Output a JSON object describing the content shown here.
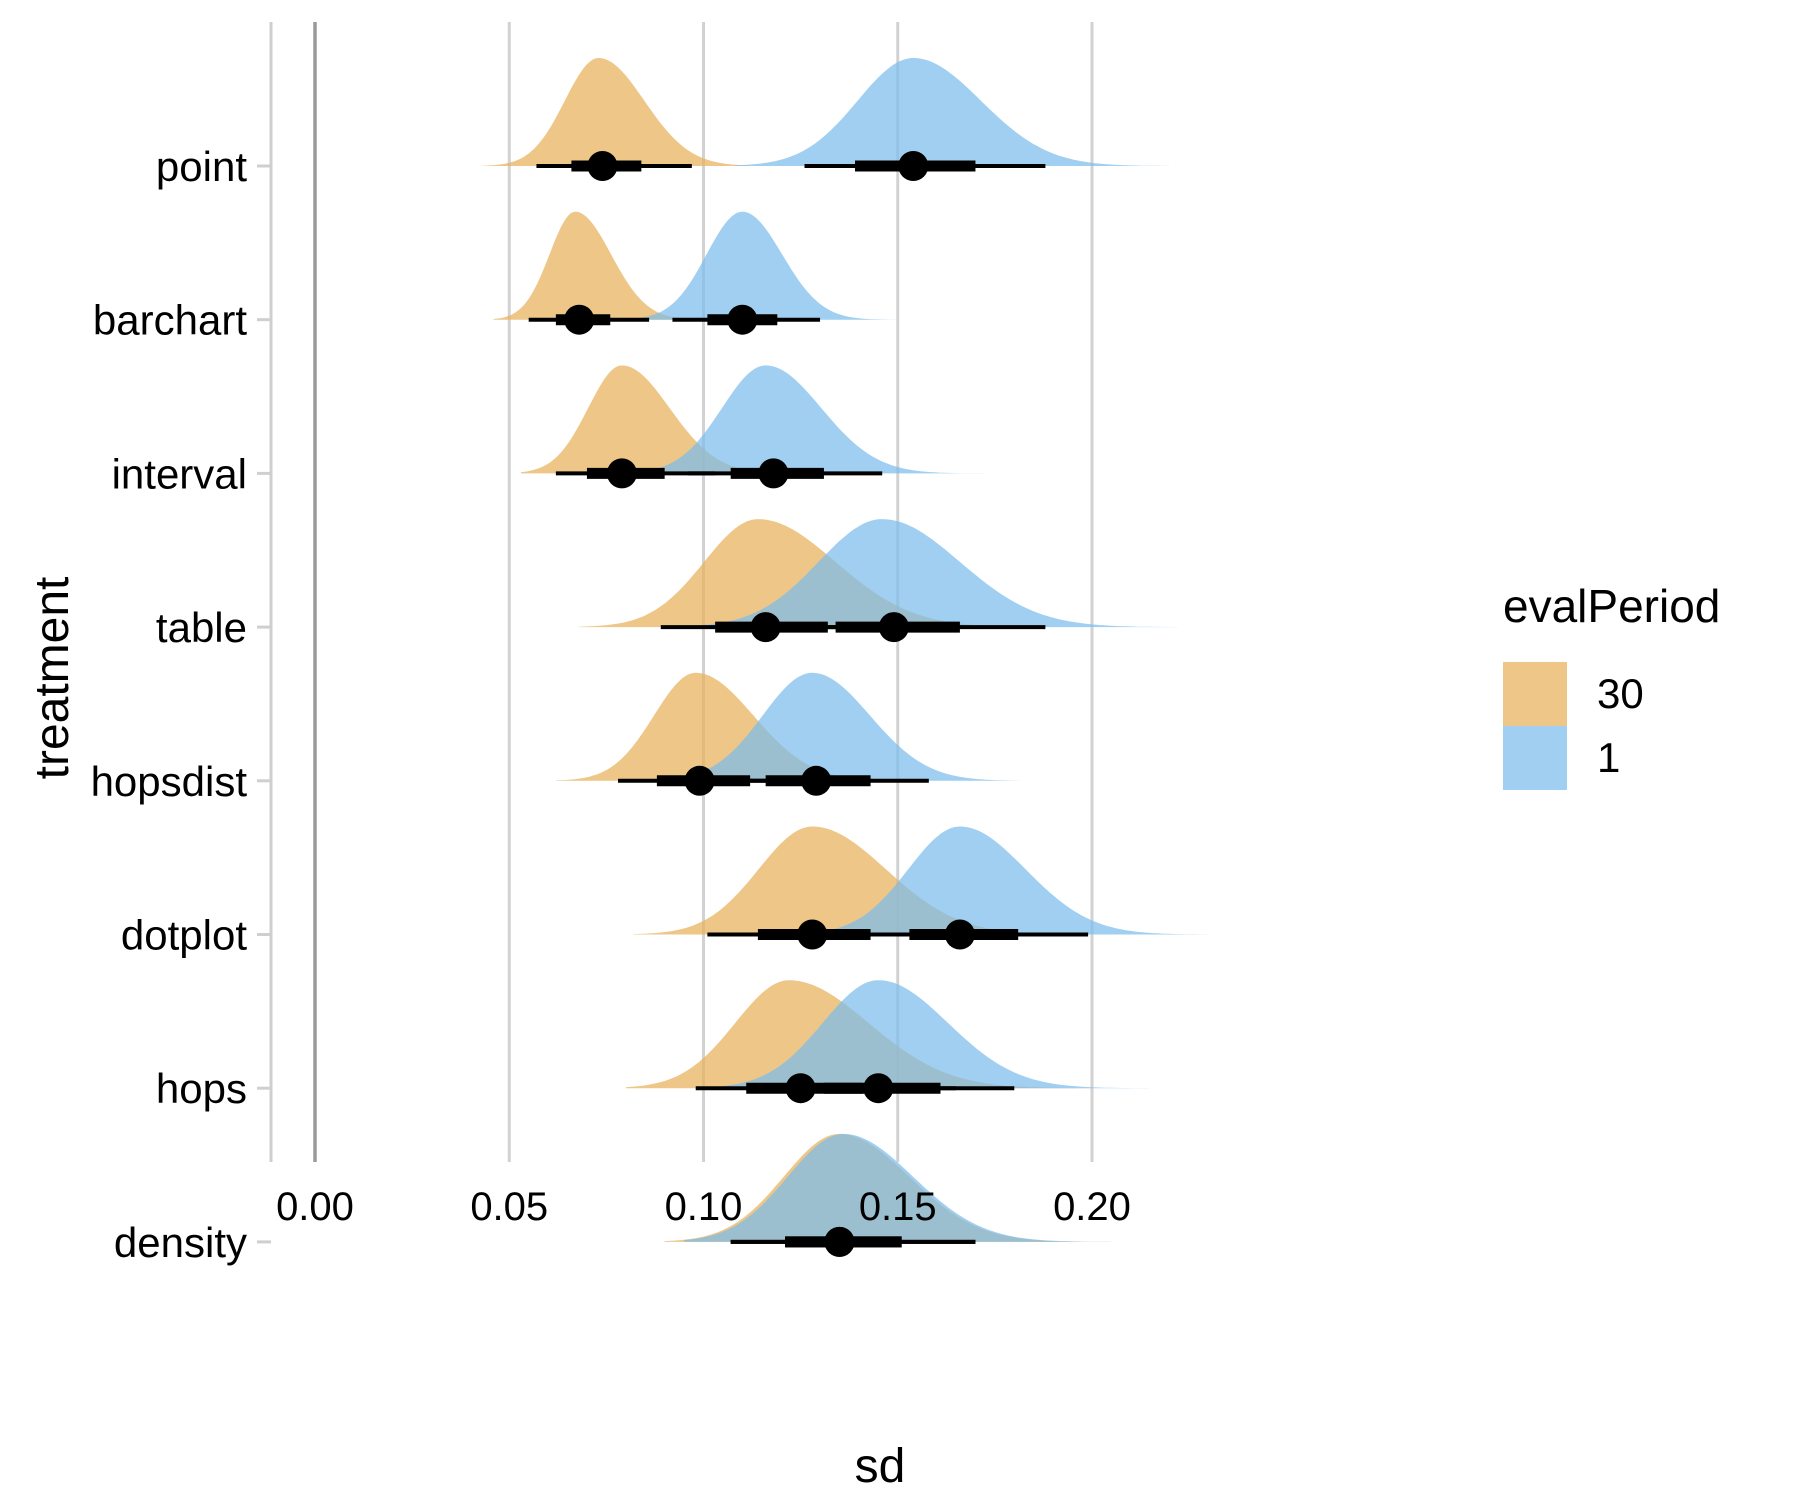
{
  "chart_data": {
    "type": "halfeye-density",
    "title": "",
    "xlabel": "sd",
    "ylabel": "treatment",
    "xlim": [
      -0.012,
      0.232
    ],
    "x_ticks": [
      "0.00",
      "0.05",
      "0.10",
      "0.15",
      "0.20"
    ],
    "x_tick_values": [
      0.0,
      0.05,
      0.1,
      0.15,
      0.2
    ],
    "grid": "vertical-major",
    "reference_line_x": 0.0,
    "categories": [
      "point",
      "barchart",
      "interval",
      "table",
      "hopsdist",
      "dotplot",
      "hops",
      "density"
    ],
    "legend": {
      "title": "evalPeriod",
      "placement": "right",
      "entries": [
        {
          "label": "30",
          "color": "#E8B25A"
        },
        {
          "label": "1",
          "color": "#7DBDEB"
        }
      ]
    },
    "series": [
      {
        "name": "30",
        "color": "#E8B25A",
        "distributions": [
          {
            "category": "point",
            "median": 0.074,
            "q66": [
              0.066,
              0.084
            ],
            "q95": [
              0.057,
              0.097
            ],
            "range": [
              0.043,
              0.112
            ],
            "mode": 0.073
          },
          {
            "category": "barchart",
            "median": 0.068,
            "q66": [
              0.062,
              0.076
            ],
            "q95": [
              0.055,
              0.086
            ],
            "range": [
              0.046,
              0.1
            ],
            "mode": 0.067
          },
          {
            "category": "interval",
            "median": 0.079,
            "q66": [
              0.07,
              0.09
            ],
            "q95": [
              0.062,
              0.103
            ],
            "range": [
              0.053,
              0.118
            ],
            "mode": 0.079
          },
          {
            "category": "table",
            "median": 0.116,
            "q66": [
              0.103,
              0.132
            ],
            "q95": [
              0.089,
              0.155
            ],
            "range": [
              0.068,
              0.188
            ],
            "mode": 0.114
          },
          {
            "category": "hopsdist",
            "median": 0.099,
            "q66": [
              0.088,
              0.112
            ],
            "q95": [
              0.078,
              0.128
            ],
            "range": [
              0.062,
              0.15
            ],
            "mode": 0.098
          },
          {
            "category": "dotplot",
            "median": 0.128,
            "q66": [
              0.114,
              0.143
            ],
            "q95": [
              0.101,
              0.165
            ],
            "range": [
              0.082,
              0.188
            ],
            "mode": 0.128
          },
          {
            "category": "hops",
            "median": 0.125,
            "q66": [
              0.111,
              0.141
            ],
            "q95": [
              0.098,
              0.165
            ],
            "range": [
              0.08,
              0.2
            ],
            "mode": 0.122
          },
          {
            "category": "density",
            "median": 0.135,
            "q66": [
              0.121,
              0.151
            ],
            "q95": [
              0.107,
              0.17
            ],
            "range": [
              0.09,
              0.205
            ],
            "mode": 0.135
          }
        ]
      },
      {
        "name": "1",
        "color": "#7DBDEB",
        "distributions": [
          {
            "category": "point",
            "median": 0.154,
            "q66": [
              0.139,
              0.17
            ],
            "q95": [
              0.126,
              0.188
            ],
            "range": [
              0.108,
              0.22
            ],
            "mode": 0.154
          },
          {
            "category": "barchart",
            "median": 0.11,
            "q66": [
              0.101,
              0.119
            ],
            "q95": [
              0.092,
              0.13
            ],
            "range": [
              0.078,
              0.15
            ],
            "mode": 0.11
          },
          {
            "category": "interval",
            "median": 0.118,
            "q66": [
              0.107,
              0.131
            ],
            "q95": [
              0.096,
              0.146
            ],
            "range": [
              0.082,
              0.176
            ],
            "mode": 0.116
          },
          {
            "category": "table",
            "median": 0.149,
            "q66": [
              0.134,
              0.166
            ],
            "q95": [
              0.117,
              0.188
            ],
            "range": [
              0.095,
              0.222
            ],
            "mode": 0.146
          },
          {
            "category": "hopsdist",
            "median": 0.129,
            "q66": [
              0.116,
              0.143
            ],
            "q95": [
              0.104,
              0.158
            ],
            "range": [
              0.088,
              0.193
            ],
            "mode": 0.128
          },
          {
            "category": "dotplot",
            "median": 0.166,
            "q66": [
              0.153,
              0.181
            ],
            "q95": [
              0.14,
              0.199
            ],
            "range": [
              0.118,
              0.23
            ],
            "mode": 0.166
          },
          {
            "category": "hops",
            "median": 0.145,
            "q66": [
              0.131,
              0.161
            ],
            "q95": [
              0.117,
              0.18
            ],
            "range": [
              0.098,
              0.216
            ],
            "mode": 0.145
          },
          {
            "category": "density",
            "median": 0.135,
            "q66": [
              0.121,
              0.151
            ],
            "q95": [
              0.107,
              0.17
            ],
            "range": [
              0.095,
              0.205
            ],
            "mode": 0.136
          }
        ]
      }
    ]
  }
}
